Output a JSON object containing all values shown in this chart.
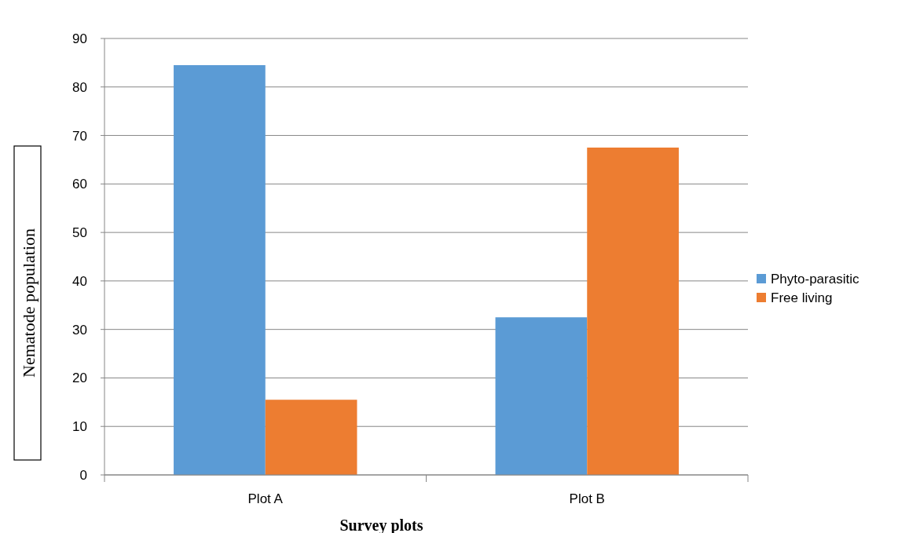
{
  "chart_data": {
    "type": "bar",
    "xlabel": "Survey plots",
    "ylabel": "Nematode population",
    "categories": [
      "Plot A",
      "Plot B"
    ],
    "series": [
      {
        "name": "Phyto-parasitic",
        "color": "#5b9bd5",
        "values": [
          84.5,
          32.5
        ]
      },
      {
        "name": "Free living",
        "color": "#ed7d31",
        "values": [
          15.5,
          67.5
        ]
      }
    ],
    "ylim": [
      0,
      90
    ],
    "yticks": [
      0,
      10,
      20,
      30,
      40,
      50,
      60,
      70,
      80,
      90
    ],
    "grid": "y",
    "legend": "right"
  }
}
